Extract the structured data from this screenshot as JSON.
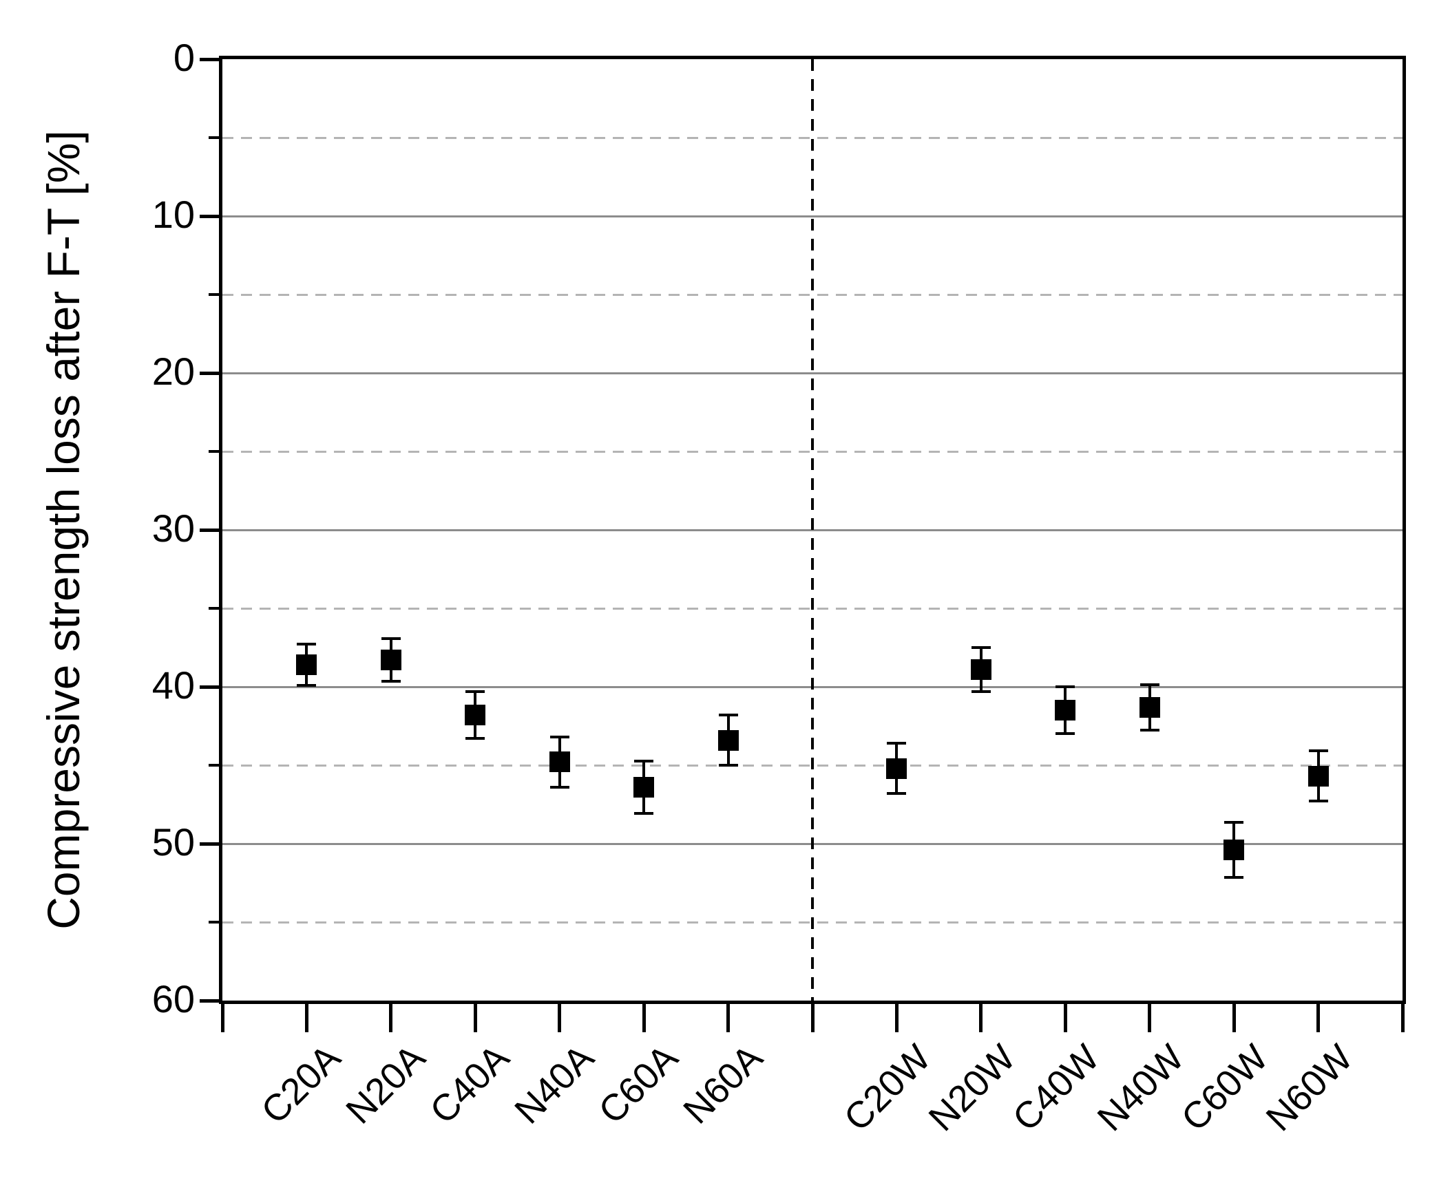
{
  "chart_data": {
    "type": "scatter",
    "title": "",
    "xlabel": "",
    "ylabel": "Compressive strength loss after F-T [%]",
    "y_axis": {
      "min": 0,
      "max": 60,
      "inverted": true,
      "major_ticks": [
        0,
        10,
        20,
        30,
        40,
        50,
        60
      ],
      "minor_ticks": [
        5,
        15,
        25,
        35,
        45,
        55
      ]
    },
    "grid": {
      "major_style": "solid",
      "minor_style": "dashed",
      "major_color": "#8c8c8c",
      "minor_color": "#b4b4b4"
    },
    "categories": [
      "C20A",
      "N20A",
      "C40A",
      "N40A",
      "C60A",
      "N60A",
      "C20W",
      "N20W",
      "C40W",
      "N40W",
      "C60W",
      "N60W"
    ],
    "series": [
      {
        "name": "Compressive strength loss after F-T",
        "marker": "filled-square",
        "color": "#000000",
        "values": [
          38.6,
          38.3,
          41.8,
          44.8,
          46.4,
          43.4,
          45.2,
          38.9,
          41.5,
          41.3,
          50.4,
          45.7
        ],
        "errors": [
          1.3,
          1.35,
          1.5,
          1.6,
          1.65,
          1.6,
          1.6,
          1.4,
          1.5,
          1.45,
          1.75,
          1.6
        ]
      }
    ],
    "group_divider": {
      "style": "dashed",
      "color": "#000000",
      "between": [
        "N60A",
        "C20W"
      ]
    },
    "legend": {
      "visible": false
    }
  }
}
